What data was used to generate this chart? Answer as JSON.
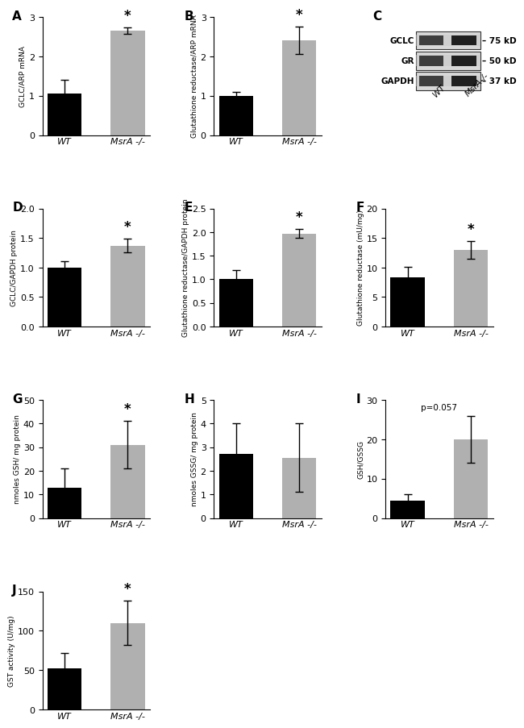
{
  "panel_A": {
    "categories": [
      "WT",
      "MsrA -/-"
    ],
    "values": [
      1.05,
      2.65
    ],
    "errors": [
      0.35,
      0.08
    ],
    "colors": [
      "#000000",
      "#b0b0b0"
    ],
    "ylabel": "GCLC/ARP mRNA",
    "ylim": [
      0,
      3
    ],
    "yticks": [
      0,
      1,
      2,
      3
    ],
    "star": true,
    "label": "A"
  },
  "panel_B": {
    "categories": [
      "WT",
      "MsrA -/-"
    ],
    "values": [
      1.0,
      2.4
    ],
    "errors": [
      0.1,
      0.35
    ],
    "colors": [
      "#000000",
      "#b0b0b0"
    ],
    "ylabel": "Glutathione reductase/ARP mRNA",
    "ylim": [
      0,
      3
    ],
    "yticks": [
      0,
      1,
      2,
      3
    ],
    "star": true,
    "label": "B"
  },
  "panel_D": {
    "categories": [
      "WT",
      "MsrA -/-"
    ],
    "values": [
      1.0,
      1.37
    ],
    "errors": [
      0.1,
      0.12
    ],
    "colors": [
      "#000000",
      "#b0b0b0"
    ],
    "ylabel": "GCLC/GAPDH protein",
    "ylim": [
      0,
      2.0
    ],
    "yticks": [
      0.0,
      0.5,
      1.0,
      1.5,
      2.0
    ],
    "star": true,
    "label": "D"
  },
  "panel_E": {
    "categories": [
      "WT",
      "MsrA -/-"
    ],
    "values": [
      1.0,
      1.97
    ],
    "errors": [
      0.2,
      0.1
    ],
    "colors": [
      "#000000",
      "#b0b0b0"
    ],
    "ylabel": "Glutathione reductase/GAPDH protein",
    "ylim": [
      0,
      2.5
    ],
    "yticks": [
      0.0,
      0.5,
      1.0,
      1.5,
      2.0,
      2.5
    ],
    "star": true,
    "label": "E"
  },
  "panel_F": {
    "categories": [
      "WT",
      "MsrA -/-"
    ],
    "values": [
      8.3,
      13.0
    ],
    "errors": [
      1.8,
      1.5
    ],
    "colors": [
      "#000000",
      "#b0b0b0"
    ],
    "ylabel": "Glutathione reductase (mU/mg)",
    "ylim": [
      0,
      20
    ],
    "yticks": [
      0,
      5,
      10,
      15,
      20
    ],
    "star": true,
    "label": "F"
  },
  "panel_G": {
    "categories": [
      "WT",
      "MsrA -/-"
    ],
    "values": [
      13.0,
      31.0
    ],
    "errors": [
      8.0,
      10.0
    ],
    "colors": [
      "#000000",
      "#b0b0b0"
    ],
    "ylabel": "nmoles GSH/ mg protein",
    "ylim": [
      0,
      50
    ],
    "yticks": [
      0,
      10,
      20,
      30,
      40,
      50
    ],
    "star": true,
    "label": "G"
  },
  "panel_H": {
    "categories": [
      "WT",
      "MsrA -/-"
    ],
    "values": [
      2.7,
      2.55
    ],
    "errors": [
      1.3,
      1.45
    ],
    "colors": [
      "#000000",
      "#b0b0b0"
    ],
    "ylabel": "nmoles GSSG/ mg protein",
    "ylim": [
      0,
      5
    ],
    "yticks": [
      0,
      1,
      2,
      3,
      4,
      5
    ],
    "star": false,
    "label": "H"
  },
  "panel_I": {
    "categories": [
      "WT",
      "MsrA -/-"
    ],
    "values": [
      4.5,
      20.0
    ],
    "errors": [
      1.5,
      6.0
    ],
    "colors": [
      "#000000",
      "#b0b0b0"
    ],
    "ylabel": "GSH/GSSG",
    "ylim": [
      0,
      30
    ],
    "yticks": [
      0,
      10,
      20,
      30
    ],
    "star": false,
    "pvalue": "p=0.057",
    "label": "I"
  },
  "panel_J": {
    "categories": [
      "WT",
      "MsrA -/-"
    ],
    "values": [
      52.0,
      110.0
    ],
    "errors": [
      20.0,
      28.0
    ],
    "colors": [
      "#000000",
      "#b0b0b0"
    ],
    "ylabel": "GST activity (U/mg)",
    "ylim": [
      0,
      150
    ],
    "yticks": [
      0,
      50,
      100,
      150
    ],
    "star": true,
    "label": "J"
  },
  "panel_C": {
    "label": "C",
    "rows": [
      "GCLC",
      "GR",
      "GAPDH"
    ],
    "kd_labels": [
      "75 kD",
      "50 kD",
      "37 kD"
    ],
    "col_labels": [
      "WT",
      "MsrA-/-"
    ]
  }
}
